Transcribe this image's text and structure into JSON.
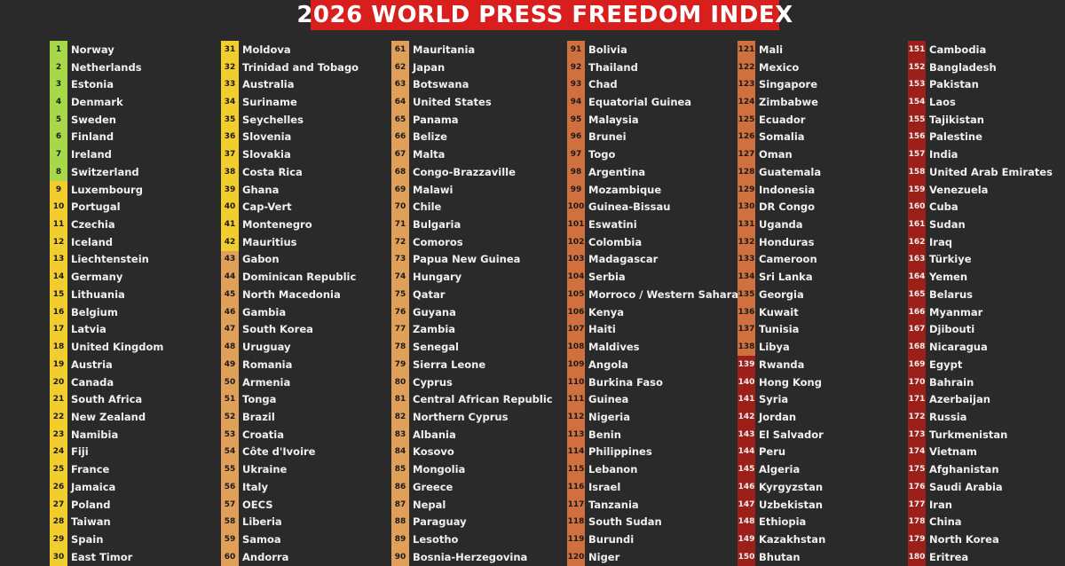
{
  "title": "2026 WORLD PRESS FREEDOM INDEX",
  "columns": [
    {
      "start": 1,
      "countries": [
        "Norway",
        "Netherlands",
        "Estonia",
        "Denmark",
        "Sweden",
        "Finland",
        "Ireland",
        "Switzerland",
        "Luxembourg",
        "Portugal",
        "Czechia",
        "Iceland",
        "Liechtenstein",
        "Germany",
        "Lithuania",
        "Belgium",
        "Latvia",
        "United Kingdom",
        "Austria",
        "Canada",
        "South Africa",
        "New Zealand",
        "Namibia",
        "Fiji",
        "France",
        "Jamaica",
        "Poland",
        "Taiwan",
        "Spain",
        "East Timor"
      ]
    },
    {
      "start": 31,
      "countries": [
        "Moldova",
        "Trinidad and Tobago",
        "Australia",
        "Suriname",
        "Seychelles",
        "Slovenia",
        "Slovakia",
        "Costa Rica",
        "Ghana",
        "Cap-Vert",
        "Montenegro",
        "Mauritius",
        "Gabon",
        "Dominican Republic",
        "North Macedonia",
        "Gambia",
        "South Korea",
        "Uruguay",
        "Romania",
        "Armenia",
        "Tonga",
        "Brazil",
        "Croatia",
        "Côte d'Ivoire",
        "Ukraine",
        "Italy",
        "OECS",
        "Liberia",
        "Samoa",
        "Andorra"
      ]
    },
    {
      "start": 61,
      "countries": [
        "Mauritania",
        "Japan",
        "Botswana",
        "United States",
        "Panama",
        "Belize",
        "Malta",
        "Congo-Brazzaville",
        "Malawi",
        "Chile",
        "Bulgaria",
        "Comoros",
        "Papua New Guinea",
        "Hungary",
        "Qatar",
        "Guyana",
        "Zambia",
        "Senegal",
        "Sierra Leone",
        "Cyprus",
        "Central African Republic",
        "Northern Cyprus",
        "Albania",
        "Kosovo",
        "Mongolia",
        "Greece",
        "Nepal",
        "Paraguay",
        "Lesotho",
        "Bosnia-Herzegovina"
      ]
    },
    {
      "start": 91,
      "countries": [
        "Bolivia",
        "Thailand",
        "Chad",
        "Equatorial Guinea",
        "Malaysia",
        "Brunei",
        "Togo",
        "Argentina",
        "Mozambique",
        "Guinea-Bissau",
        "Eswatini",
        "Colombia",
        "Madagascar",
        "Serbia",
        "Morroco / Western Sahara",
        "Kenya",
        "Haiti",
        "Maldives",
        "Angola",
        "Burkina Faso",
        "Guinea",
        "Nigeria",
        "Benin",
        "Philippines",
        "Lebanon",
        "Israel",
        "Tanzania",
        "South Sudan",
        "Burundi",
        "Niger"
      ]
    },
    {
      "start": 121,
      "countries": [
        "Mali",
        "Mexico",
        "Singapore",
        "Zimbabwe",
        "Ecuador",
        "Somalia",
        "Oman",
        "Guatemala",
        "Indonesia",
        "DR Congo",
        "Uganda",
        "Honduras",
        "Cameroon",
        "Sri Lanka",
        "Georgia",
        "Kuwait",
        "Tunisia",
        "Libya",
        "Rwanda",
        "Hong Kong",
        "Syria",
        "Jordan",
        "El Salvador",
        "Peru",
        "Algeria",
        "Kyrgyzstan",
        "Uzbekistan",
        "Ethiopia",
        "Kazakhstan",
        "Bhutan"
      ]
    },
    {
      "start": 151,
      "countries": [
        "Cambodia",
        "Bangladesh",
        "Pakistan",
        "Laos",
        "Tajikistan",
        "Palestine",
        "India",
        "United Arab Emirates",
        "Venezuela",
        "Cuba",
        "Sudan",
        "Iraq",
        "Türkiye",
        "Yemen",
        "Belarus",
        "Myanmar",
        "Djibouti",
        "Nicaragua",
        "Egypt",
        "Bahrain",
        "Azerbaijan",
        "Russia",
        "Turkmenistan",
        "Vietnam",
        "Afghanistan",
        "Saudi Arabia",
        "Iran",
        "China",
        "North Korea",
        "Eritrea"
      ]
    }
  ],
  "category_colors": {
    "good": "#a6d84a",
    "satisfactory": "#f2cd2e",
    "problematic": "#e0a05a",
    "difficult": "#d0703e",
    "very_serious": "#9c1f1a"
  }
}
